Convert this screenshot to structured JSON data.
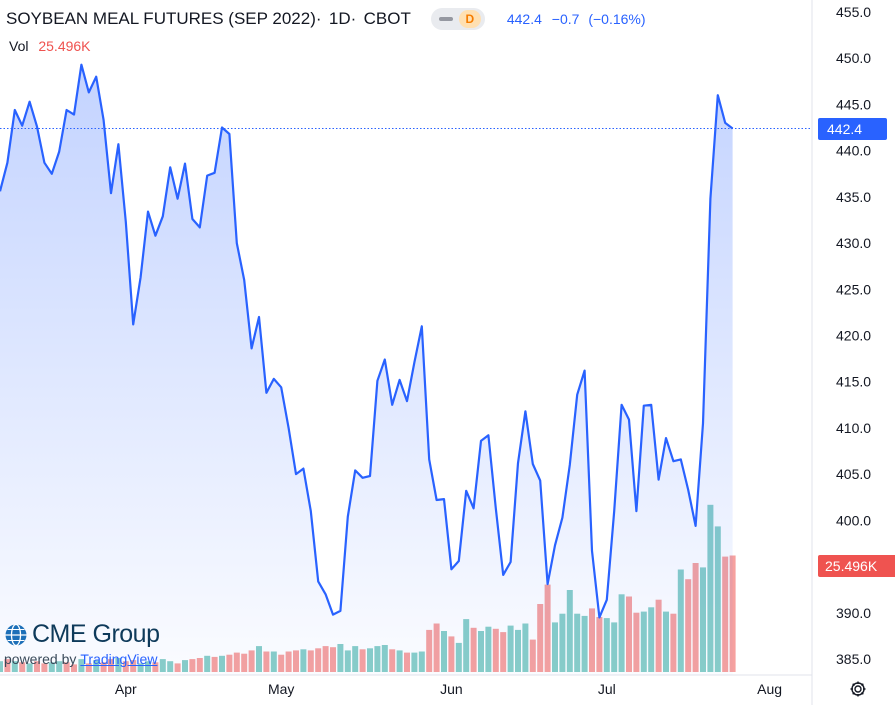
{
  "header": {
    "symbol_title": "SOYBEAN MEAL FUTURES (SEP 2022)",
    "interval": "1D",
    "exchange": "CBOT",
    "badge": "D",
    "last_price": "442.4",
    "change": "−0.7",
    "change_pct": "(−0.16%)",
    "price_color": "#2962ff"
  },
  "volume": {
    "label": "Vol",
    "value": "25.496K",
    "color": "#ef5350"
  },
  "tags": {
    "last_price": "442.4",
    "last_volume": "25.496K"
  },
  "branding": {
    "logo_text": "CME Group",
    "powered_by": "powered by",
    "platform": "TradingView"
  },
  "icons": {
    "settings": "gear-icon",
    "logo": "globe-icon"
  },
  "chart_data": {
    "type": "area",
    "title": "SOYBEAN MEAL FUTURES (SEP 2022)",
    "y_axis_ticks": [
      "455.0",
      "450.0",
      "445.0",
      "440.0",
      "435.0",
      "430.0",
      "425.0",
      "420.0",
      "415.0",
      "410.0",
      "405.0",
      "400.0",
      "395.0",
      "390.0",
      "385.0"
    ],
    "x_axis_ticks": [
      "Apr",
      "May",
      "Jun",
      "Jul",
      "Aug"
    ],
    "x_tick_index": [
      17,
      38,
      61,
      82,
      104
    ],
    "ylim": [
      383,
      456
    ],
    "last_price": 442.4,
    "colors": {
      "line": "#2962ff",
      "volume_up": "#26a69a",
      "volume_down": "#ef5350"
    },
    "series": [
      {
        "name": "Price",
        "values": [
          435.6,
          438.7,
          444.4,
          442.7,
          445.3,
          442.6,
          438.7,
          437.5,
          439.9,
          444.4,
          443.9,
          449.3,
          446.3,
          448.0,
          443.3,
          435.4,
          440.7,
          432.3,
          421.2,
          426.3,
          433.4,
          430.8,
          432.9,
          438.2,
          434.8,
          438.6,
          432.6,
          431.7,
          437.3,
          437.6,
          442.5,
          441.8,
          430.0,
          426.0,
          418.6,
          422.0,
          413.8,
          415.3,
          414.4,
          410.0,
          405.0,
          405.6,
          401.0,
          393.4,
          392.0,
          389.8,
          390.2,
          400.4,
          405.4,
          404.6,
          404.8,
          415.1,
          417.4,
          412.5,
          415.2,
          412.9,
          417.1,
          421.0,
          406.6,
          402.2,
          402.3,
          394.7,
          395.6,
          403.2,
          401.3,
          408.6,
          409.2,
          401.3,
          394.1,
          395.5,
          406.2,
          411.8,
          406.1,
          404.3,
          393.1,
          397.3,
          400.3,
          406.0,
          413.6,
          416.2,
          396.7,
          389.5,
          391.4,
          401.0,
          412.5,
          410.9,
          401.0,
          412.4,
          412.5,
          404.4,
          408.9,
          406.4,
          406.6,
          403.3,
          399.4,
          410.5,
          434.8,
          446.0,
          443.0,
          442.4
        ]
      }
    ],
    "volume_ticks": [],
    "volume": {
      "name": "Vol",
      "max": 16.5,
      "values": [
        1.0,
        1.2,
        1.0,
        0.9,
        0.8,
        1.0,
        0.8,
        0.9,
        1.0,
        0.9,
        0.7,
        1.2,
        0.8,
        1.1,
        0.9,
        1.2,
        1.3,
        1.0,
        1.1,
        0.8,
        1.0,
        0.9,
        1.2,
        1.0,
        0.8,
        1.1,
        1.2,
        1.3,
        1.5,
        1.4,
        1.5,
        1.6,
        1.8,
        1.7,
        2.0,
        2.4,
        1.9,
        1.9,
        1.6,
        1.9,
        2.0,
        2.1,
        2.0,
        2.2,
        2.4,
        2.3,
        2.6,
        2.0,
        2.4,
        2.1,
        2.2,
        2.4,
        2.5,
        2.1,
        2.0,
        1.8,
        1.8,
        1.9,
        3.9,
        4.5,
        3.8,
        3.3,
        2.7,
        4.9,
        4.1,
        3.8,
        4.2,
        4.0,
        3.7,
        4.3,
        3.9,
        4.5,
        3.0,
        6.3,
        8.1,
        4.6,
        5.4,
        7.6,
        5.4,
        5.2,
        5.9,
        5.1,
        5.0,
        4.6,
        7.2,
        7.0,
        5.5,
        5.6,
        6.0,
        6.7,
        5.6,
        5.4,
        9.5,
        8.6,
        10.1,
        9.7,
        15.5,
        13.5,
        10.7,
        10.8
      ],
      "up": [
        1,
        0,
        1,
        0,
        1,
        0,
        0,
        1,
        1,
        0,
        0,
        1,
        0,
        1,
        0,
        0,
        1,
        0,
        0,
        1,
        1,
        0,
        1,
        1,
        0,
        1,
        0,
        0,
        1,
        0,
        1,
        0,
        0,
        0,
        0,
        1,
        0,
        1,
        0,
        0,
        0,
        1,
        0,
        0,
        0,
        0,
        1,
        1,
        1,
        0,
        1,
        1,
        1,
        0,
        1,
        0,
        1,
        1,
        0,
        0,
        1,
        0,
        1,
        1,
        0,
        1,
        1,
        0,
        0,
        1,
        1,
        1,
        0,
        0,
        0,
        1,
        1,
        1,
        1,
        1,
        0,
        0,
        1,
        1,
        1,
        0,
        0,
        1,
        1,
        0,
        1,
        0,
        1,
        0,
        0,
        1,
        1,
        1,
        0,
        0
      ]
    }
  }
}
